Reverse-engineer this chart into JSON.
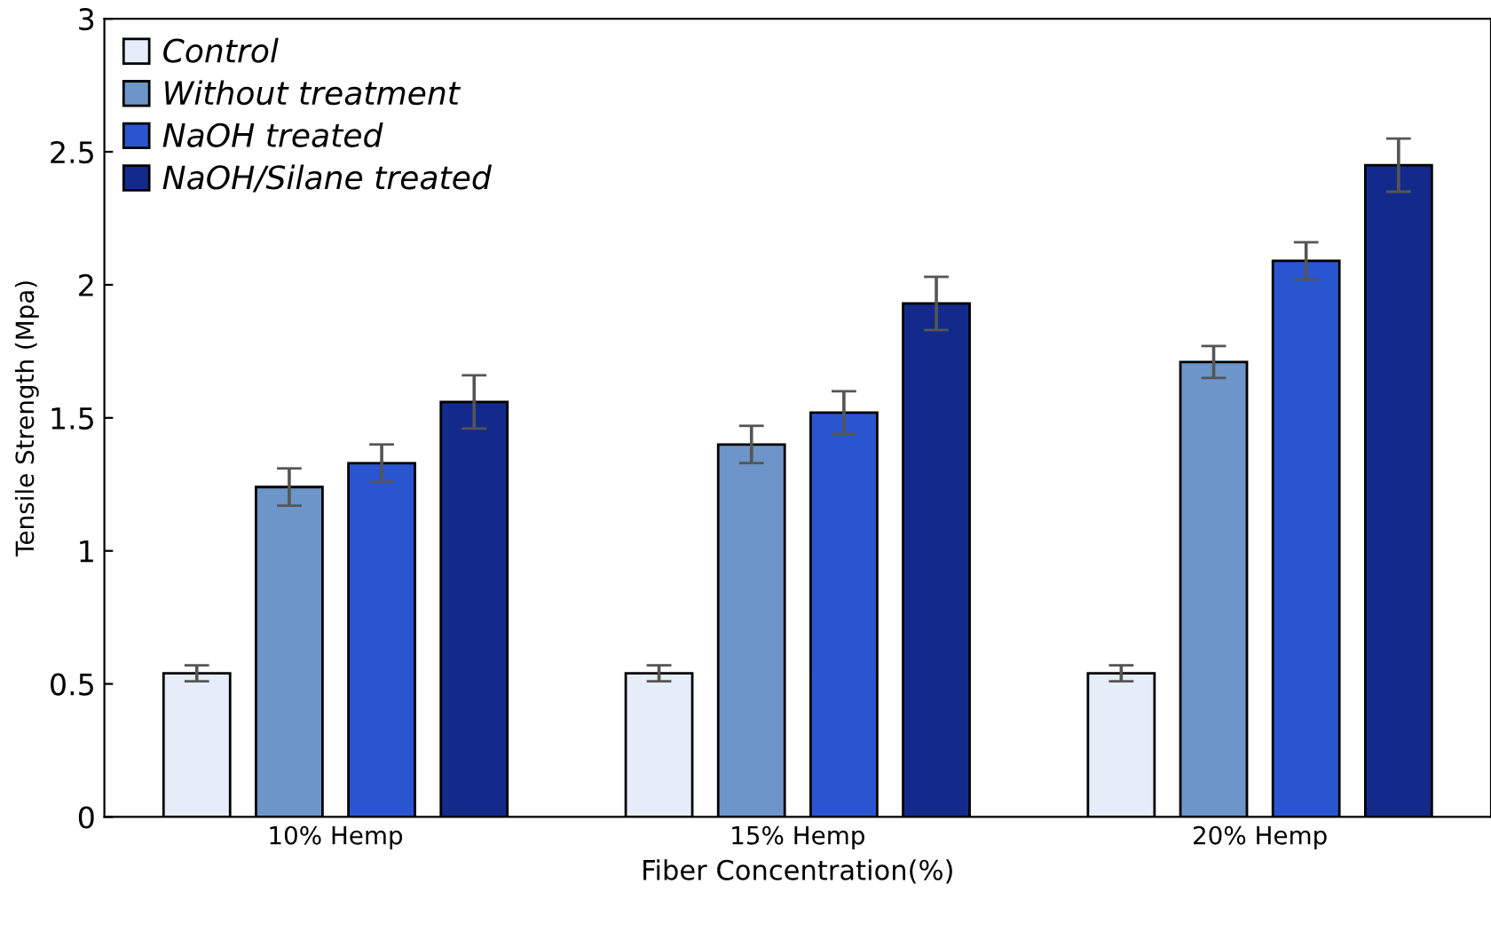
{
  "chart_data": {
    "type": "bar",
    "xlabel": "Fiber Concentration(%)",
    "ylabel": "Tensile Strength (Mpa)",
    "categories": [
      "10% Hemp",
      "15% Hemp",
      "20% Hemp"
    ],
    "series": [
      {
        "name": "Control",
        "color": "#e6ecf8",
        "values": [
          0.54,
          0.54,
          0.54
        ],
        "errors": [
          0.03,
          0.03,
          0.03
        ]
      },
      {
        "name": "Without treatment",
        "color": "#6e95c9",
        "values": [
          1.24,
          1.4,
          1.71
        ],
        "errors": [
          0.07,
          0.07,
          0.06
        ]
      },
      {
        "name": "NaOH treated",
        "color": "#2a55d0",
        "values": [
          1.33,
          1.52,
          2.09
        ],
        "errors": [
          0.07,
          0.08,
          0.07
        ]
      },
      {
        "name": "NaOH/Silane treated",
        "color": "#132a8a",
        "values": [
          1.56,
          1.93,
          2.45
        ],
        "errors": [
          0.1,
          0.1,
          0.1
        ]
      }
    ],
    "ylim": [
      0,
      3
    ],
    "yticks": [
      0,
      0.5,
      1,
      1.5,
      2,
      2.5,
      3
    ],
    "grid": false,
    "legend": "top left"
  }
}
